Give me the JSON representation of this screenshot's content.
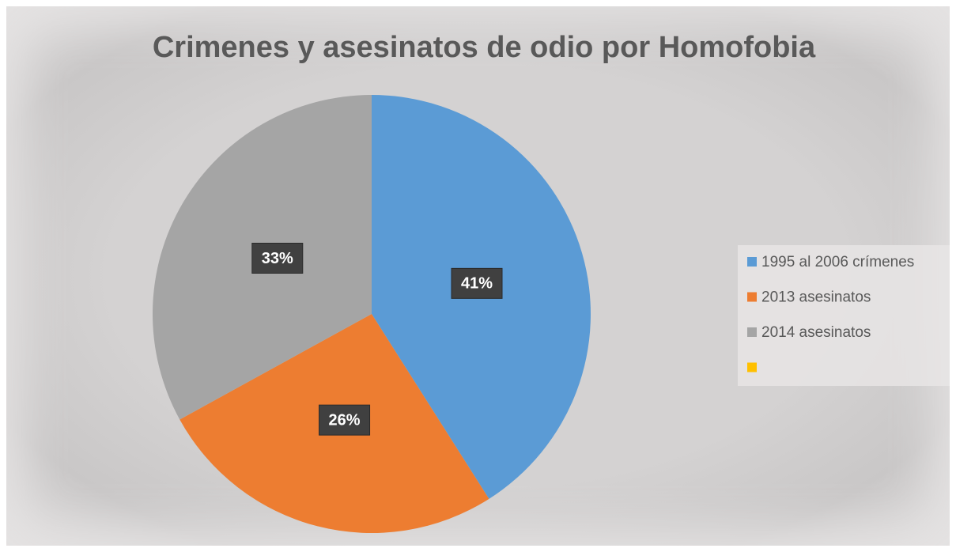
{
  "chart_data": {
    "type": "pie",
    "title": "Crimenes y asesinatos de odio por Homofobia",
    "categories": [
      "1995 al 2006 crímenes",
      "2013 asesinatos",
      "2014 asesinatos",
      null
    ],
    "values": [
      41,
      26,
      33,
      0
    ],
    "value_labels": [
      "41%",
      "26%",
      "33%",
      null
    ],
    "colors": [
      "#5b9bd5",
      "#ed7d31",
      "#a5a5a5",
      "#ffc000"
    ],
    "legend": "right"
  }
}
